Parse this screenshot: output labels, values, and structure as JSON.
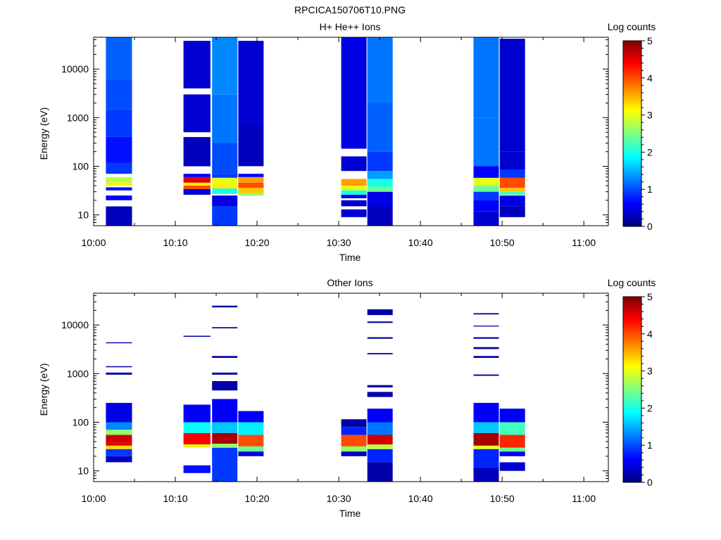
{
  "figure_title": "RPCICA150706T10.PNG",
  "colormap": [
    "#00007f",
    "#0000ff",
    "#007fff",
    "#00ffff",
    "#7fff7f",
    "#ffff00",
    "#ff7f00",
    "#ff0000",
    "#7f0000"
  ],
  "chart_data": [
    {
      "type": "heatmap",
      "title": "H+ He++ Ions",
      "xlabel": "Time",
      "ylabel": "Energy (eV)",
      "x_range_minutes": [
        0,
        63
      ],
      "x_ticks": [
        "10:00",
        "10:10",
        "10:20",
        "10:30",
        "10:40",
        "10:50",
        "11:00"
      ],
      "x_tick_minutes": [
        0,
        10,
        20,
        30,
        40,
        50,
        60
      ],
      "y_scale": "log",
      "y_range": [
        6,
        45000
      ],
      "y_ticks": [
        "10",
        "100",
        "1000",
        "10000"
      ],
      "y_tick_values": [
        10,
        100,
        1000,
        10000
      ],
      "colorbar": {
        "label": "Log counts",
        "min": 0,
        "max": 5,
        "ticks": [
          "0",
          "1",
          "2",
          "3",
          "4",
          "5"
        ]
      },
      "sweeps": [
        {
          "start": "10:01.5",
          "t0": 1.5,
          "t1": 4.7,
          "bands": [
            {
              "e0": 6,
              "e1": 15,
              "v": 0.3
            },
            {
              "e0": 20,
              "e1": 25,
              "v": 0.6
            },
            {
              "e0": 32,
              "e1": 37,
              "v": 0.7
            },
            {
              "e0": 40,
              "e1": 46,
              "v": 3.2
            },
            {
              "e0": 46,
              "e1": 60,
              "v": 2.8
            },
            {
              "e0": 70,
              "e1": 120,
              "v": 0.9
            },
            {
              "e0": 120,
              "e1": 400,
              "v": 0.7
            },
            {
              "e0": 400,
              "e1": 1500,
              "v": 0.9
            },
            {
              "e0": 1500,
              "e1": 6000,
              "v": 1.0
            },
            {
              "e0": 6000,
              "e1": 45000,
              "v": 1.1
            }
          ]
        },
        {
          "start": "10:11",
          "t0": 11.0,
          "t1": 14.3,
          "bands": [
            {
              "e0": 26,
              "e1": 34,
              "v": 0.4
            },
            {
              "e0": 34,
              "e1": 40,
              "v": 4.0
            },
            {
              "e0": 40,
              "e1": 46,
              "v": 3.2
            },
            {
              "e0": 46,
              "e1": 60,
              "v": 4.5
            },
            {
              "e0": 60,
              "e1": 70,
              "v": 0.6
            },
            {
              "e0": 100,
              "e1": 400,
              "v": 0.3
            },
            {
              "e0": 500,
              "e1": 3000,
              "v": 0.4
            },
            {
              "e0": 4000,
              "e1": 38000,
              "v": 0.4
            }
          ]
        },
        {
          "start": "10:14.5",
          "t0": 14.5,
          "t1": 17.6,
          "bands": [
            {
              "e0": 6,
              "e1": 15,
              "v": 0.9
            },
            {
              "e0": 15,
              "e1": 25,
              "v": 0.5
            },
            {
              "e0": 27,
              "e1": 35,
              "v": 2.0
            },
            {
              "e0": 35,
              "e1": 45,
              "v": 3.2
            },
            {
              "e0": 45,
              "e1": 58,
              "v": 3.0
            },
            {
              "e0": 58,
              "e1": 70,
              "v": 0.9
            },
            {
              "e0": 70,
              "e1": 300,
              "v": 1.0
            },
            {
              "e0": 300,
              "e1": 3000,
              "v": 1.2
            },
            {
              "e0": 3000,
              "e1": 45000,
              "v": 1.3
            }
          ]
        },
        {
          "start": "10:17.7",
          "t0": 17.7,
          "t1": 20.8,
          "bands": [
            {
              "e0": 25,
              "e1": 28,
              "v": 2.6
            },
            {
              "e0": 28,
              "e1": 36,
              "v": 3.4
            },
            {
              "e0": 36,
              "e1": 46,
              "v": 4.0
            },
            {
              "e0": 46,
              "e1": 60,
              "v": 3.6
            },
            {
              "e0": 60,
              "e1": 70,
              "v": 0.6
            },
            {
              "e0": 100,
              "e1": 700,
              "v": 0.3
            },
            {
              "e0": 700,
              "e1": 5000,
              "v": 0.4
            },
            {
              "e0": 5000,
              "e1": 38000,
              "v": 0.4
            }
          ]
        },
        {
          "start": "10:30.3",
          "t0": 30.3,
          "t1": 33.4,
          "bands": [
            {
              "e0": 9,
              "e1": 13,
              "v": 0.4
            },
            {
              "e0": 15,
              "e1": 20,
              "v": 0.4
            },
            {
              "e0": 22,
              "e1": 26,
              "v": 0.5
            },
            {
              "e0": 26,
              "e1": 32,
              "v": 2.0
            },
            {
              "e0": 32,
              "e1": 40,
              "v": 3.0
            },
            {
              "e0": 40,
              "e1": 55,
              "v": 3.6
            },
            {
              "e0": 80,
              "e1": 160,
              "v": 0.4
            },
            {
              "e0": 230,
              "e1": 2000,
              "v": 0.5
            },
            {
              "e0": 2000,
              "e1": 45000,
              "v": 0.5
            }
          ]
        },
        {
          "start": "10:33.5",
          "t0": 33.5,
          "t1": 36.6,
          "bands": [
            {
              "e0": 6,
              "e1": 15,
              "v": 0.3
            },
            {
              "e0": 15,
              "e1": 30,
              "v": 0.5
            },
            {
              "e0": 30,
              "e1": 38,
              "v": 2.4
            },
            {
              "e0": 38,
              "e1": 55,
              "v": 2.0
            },
            {
              "e0": 55,
              "e1": 80,
              "v": 1.4
            },
            {
              "e0": 80,
              "e1": 200,
              "v": 0.9
            },
            {
              "e0": 200,
              "e1": 2000,
              "v": 1.1
            },
            {
              "e0": 2000,
              "e1": 45000,
              "v": 1.2
            }
          ]
        },
        {
          "start": "10:46.5",
          "t0": 46.5,
          "t1": 49.6,
          "bands": [
            {
              "e0": 6,
              "e1": 12,
              "v": 0.4
            },
            {
              "e0": 12,
              "e1": 20,
              "v": 0.6
            },
            {
              "e0": 20,
              "e1": 30,
              "v": 0.9
            },
            {
              "e0": 30,
              "e1": 40,
              "v": 2.4
            },
            {
              "e0": 40,
              "e1": 58,
              "v": 3.0
            },
            {
              "e0": 58,
              "e1": 100,
              "v": 0.6
            },
            {
              "e0": 100,
              "e1": 1000,
              "v": 1.2
            },
            {
              "e0": 1000,
              "e1": 45000,
              "v": 1.2
            }
          ]
        },
        {
          "start": "10:49.7",
          "t0": 49.7,
          "t1": 52.8,
          "bands": [
            {
              "e0": 9,
              "e1": 15,
              "v": 0.3
            },
            {
              "e0": 15,
              "e1": 25,
              "v": 0.5
            },
            {
              "e0": 26,
              "e1": 30,
              "v": 2.2
            },
            {
              "e0": 30,
              "e1": 36,
              "v": 3.4
            },
            {
              "e0": 36,
              "e1": 58,
              "v": 4.0
            },
            {
              "e0": 58,
              "e1": 85,
              "v": 0.9
            },
            {
              "e0": 85,
              "e1": 200,
              "v": 0.4
            },
            {
              "e0": 200,
              "e1": 2000,
              "v": 0.4
            },
            {
              "e0": 2000,
              "e1": 42000,
              "v": 0.4
            }
          ]
        }
      ]
    },
    {
      "type": "heatmap",
      "title": "Other Ions",
      "xlabel": "Time",
      "ylabel": "Energy (eV)",
      "x_range_minutes": [
        0,
        63
      ],
      "x_ticks": [
        "10:00",
        "10:10",
        "10:20",
        "10:30",
        "10:40",
        "10:50",
        "11:00"
      ],
      "x_tick_minutes": [
        0,
        10,
        20,
        30,
        40,
        50,
        60
      ],
      "y_scale": "log",
      "y_range": [
        6,
        45000
      ],
      "y_ticks": [
        "10",
        "100",
        "1000",
        "10000"
      ],
      "y_tick_values": [
        10,
        100,
        1000,
        10000
      ],
      "colorbar": {
        "label": "Log counts",
        "min": 0,
        "max": 5,
        "ticks": [
          "0",
          "1",
          "2",
          "3",
          "4",
          "5"
        ]
      },
      "sweeps": [
        {
          "start": "10:01.5",
          "t0": 1.5,
          "t1": 4.7,
          "bands": [
            {
              "e0": 15,
              "e1": 20,
              "v": 0.3
            },
            {
              "e0": 20,
              "e1": 28,
              "v": 0.9
            },
            {
              "e0": 28,
              "e1": 33,
              "v": 3.3
            },
            {
              "e0": 33,
              "e1": 38,
              "v": 4.5
            },
            {
              "e0": 38,
              "e1": 55,
              "v": 4.6
            },
            {
              "e0": 55,
              "e1": 70,
              "v": 2.6
            },
            {
              "e0": 70,
              "e1": 100,
              "v": 1.3
            },
            {
              "e0": 100,
              "e1": 250,
              "v": 0.5
            },
            {
              "e0": 950,
              "e1": 1050,
              "v": 0.2
            },
            {
              "e0": 1350,
              "e1": 1420,
              "v": 0.2
            },
            {
              "e0": 4200,
              "e1": 4400,
              "v": 0.2
            }
          ]
        },
        {
          "start": "10:11",
          "t0": 11.0,
          "t1": 14.3,
          "bands": [
            {
              "e0": 9,
              "e1": 13,
              "v": 0.7
            },
            {
              "e0": 30,
              "e1": 35,
              "v": 3.0
            },
            {
              "e0": 35,
              "e1": 60,
              "v": 4.4
            },
            {
              "e0": 60,
              "e1": 100,
              "v": 1.9
            },
            {
              "e0": 100,
              "e1": 230,
              "v": 0.6
            },
            {
              "e0": 5700,
              "e1": 6000,
              "v": 0.2
            }
          ]
        },
        {
          "start": "10:14.5",
          "t0": 14.5,
          "t1": 17.6,
          "bands": [
            {
              "e0": 6,
              "e1": 30,
              "v": 0.9
            },
            {
              "e0": 30,
              "e1": 36,
              "v": 2.6
            },
            {
              "e0": 36,
              "e1": 60,
              "v": 4.8
            },
            {
              "e0": 60,
              "e1": 100,
              "v": 1.6
            },
            {
              "e0": 100,
              "e1": 300,
              "v": 0.6
            },
            {
              "e0": 450,
              "e1": 700,
              "v": 0.2
            },
            {
              "e0": 950,
              "e1": 1050,
              "v": 0.2
            },
            {
              "e0": 2100,
              "e1": 2300,
              "v": 0.2
            },
            {
              "e0": 8500,
              "e1": 9000,
              "v": 0.2
            },
            {
              "e0": 23000,
              "e1": 25000,
              "v": 0.2
            }
          ]
        },
        {
          "start": "10:17.7",
          "t0": 17.7,
          "t1": 20.8,
          "bands": [
            {
              "e0": 20,
              "e1": 25,
              "v": 0.5
            },
            {
              "e0": 25,
              "e1": 32,
              "v": 2.4
            },
            {
              "e0": 32,
              "e1": 55,
              "v": 4.0
            },
            {
              "e0": 55,
              "e1": 100,
              "v": 1.8
            },
            {
              "e0": 100,
              "e1": 170,
              "v": 0.6
            }
          ]
        },
        {
          "start": "10:30.3",
          "t0": 30.3,
          "t1": 33.4,
          "bands": [
            {
              "e0": 20,
              "e1": 25,
              "v": 0.3
            },
            {
              "e0": 25,
              "e1": 32,
              "v": 2.6
            },
            {
              "e0": 32,
              "e1": 55,
              "v": 4.0
            },
            {
              "e0": 55,
              "e1": 80,
              "v": 0.8
            },
            {
              "e0": 80,
              "e1": 115,
              "v": 0.2
            }
          ]
        },
        {
          "start": "10:33.5",
          "t0": 33.5,
          "t1": 36.6,
          "bands": [
            {
              "e0": 6,
              "e1": 15,
              "v": 0.2
            },
            {
              "e0": 15,
              "e1": 28,
              "v": 0.8
            },
            {
              "e0": 28,
              "e1": 35,
              "v": 2.8
            },
            {
              "e0": 35,
              "e1": 55,
              "v": 4.6
            },
            {
              "e0": 55,
              "e1": 100,
              "v": 1.2
            },
            {
              "e0": 100,
              "e1": 190,
              "v": 0.6
            },
            {
              "e0": 330,
              "e1": 420,
              "v": 0.2
            },
            {
              "e0": 520,
              "e1": 580,
              "v": 0.2
            },
            {
              "e0": 2500,
              "e1": 2650,
              "v": 0.2
            },
            {
              "e0": 5200,
              "e1": 5600,
              "v": 0.2
            },
            {
              "e0": 11000,
              "e1": 11800,
              "v": 0.2
            },
            {
              "e0": 16000,
              "e1": 21000,
              "v": 0.2
            }
          ]
        },
        {
          "start": "10:46.5",
          "t0": 46.5,
          "t1": 49.6,
          "bands": [
            {
              "e0": 6,
              "e1": 12,
              "v": 0.3
            },
            {
              "e0": 12,
              "e1": 28,
              "v": 0.8
            },
            {
              "e0": 28,
              "e1": 33,
              "v": 3.0
            },
            {
              "e0": 33,
              "e1": 60,
              "v": 4.8
            },
            {
              "e0": 60,
              "e1": 100,
              "v": 1.6
            },
            {
              "e0": 100,
              "e1": 250,
              "v": 0.6
            },
            {
              "e0": 900,
              "e1": 960,
              "v": 0.2
            },
            {
              "e0": 2100,
              "e1": 2300,
              "v": 0.2
            },
            {
              "e0": 3200,
              "e1": 3500,
              "v": 0.2
            },
            {
              "e0": 5200,
              "e1": 5600,
              "v": 0.2
            },
            {
              "e0": 9300,
              "e1": 9700,
              "v": 0.2
            },
            {
              "e0": 16500,
              "e1": 17500,
              "v": 0.2
            }
          ]
        },
        {
          "start": "10:49.7",
          "t0": 49.7,
          "t1": 52.8,
          "bands": [
            {
              "e0": 10,
              "e1": 15,
              "v": 0.4
            },
            {
              "e0": 20,
              "e1": 25,
              "v": 0.6
            },
            {
              "e0": 25,
              "e1": 30,
              "v": 2.4
            },
            {
              "e0": 30,
              "e1": 55,
              "v": 4.2
            },
            {
              "e0": 55,
              "e1": 100,
              "v": 2.2
            },
            {
              "e0": 100,
              "e1": 190,
              "v": 0.6
            }
          ]
        }
      ]
    }
  ]
}
